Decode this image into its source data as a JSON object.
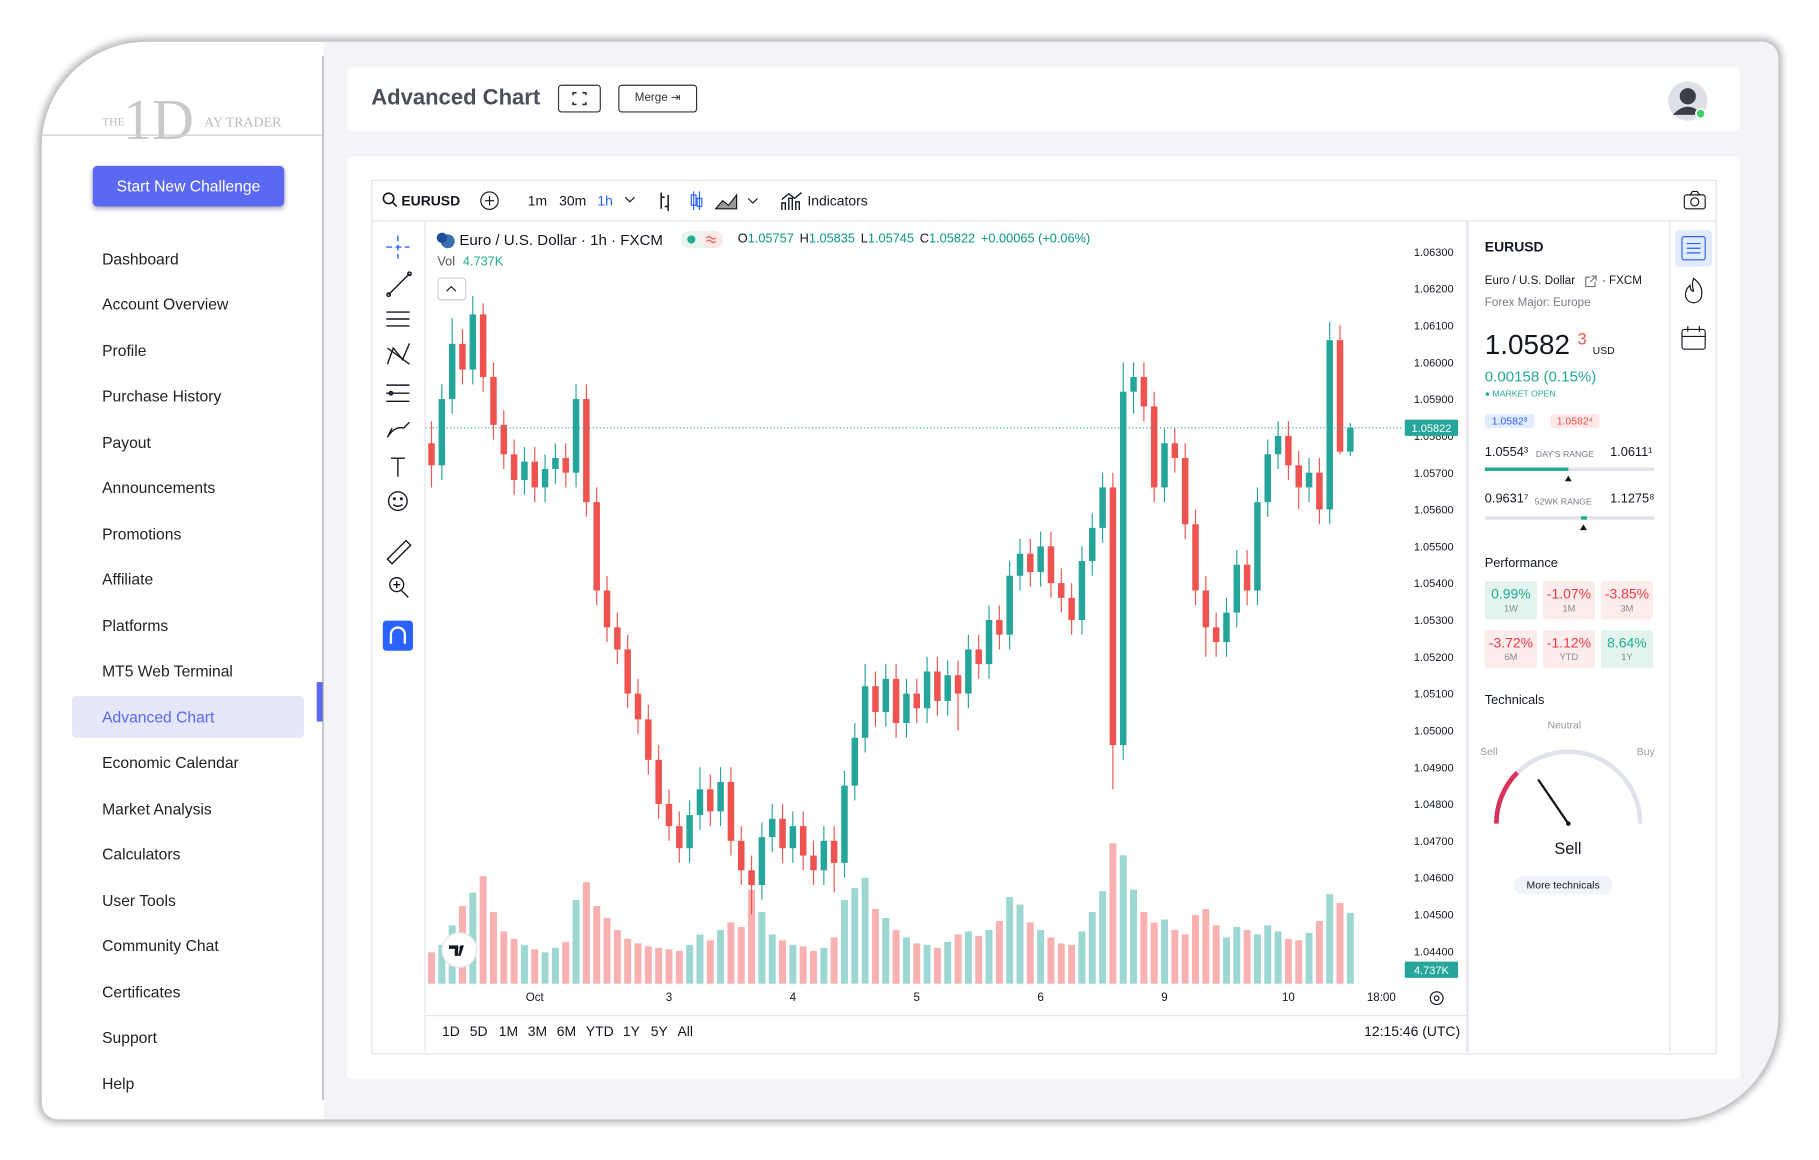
{
  "brand": {
    "pre": "THE",
    "mark": "1D",
    "post": "AY TRADER"
  },
  "sidebar": {
    "button": "Start New Challenge",
    "nav": [
      "Dashboard",
      "Account Overview",
      "Profile",
      "Purchase History",
      "Payout",
      "Announcements",
      "Promotions",
      "Affiliate",
      "Platforms",
      "MT5 Web Terminal",
      "Advanced Chart",
      "Economic Calendar",
      "Market Analysis",
      "Calculators",
      "User Tools",
      "Community Chat",
      "Certificates",
      "Support",
      "Help"
    ],
    "active_index": 10
  },
  "header": {
    "title": "Advanced Chart",
    "merge": "Merge ⇥"
  },
  "toolbar": {
    "symbol": "EURUSD",
    "intervals": [
      "1m",
      "30m",
      "1h"
    ],
    "active_interval": 2,
    "indicators": "Indicators"
  },
  "chart_data": {
    "type": "candlestick",
    "title": "Euro / U.S. Dollar · 1h · FXCM",
    "ohlc_keys": [
      "O",
      "H",
      "L",
      "C"
    ],
    "change_readout": "+0.00065 (+0.06%)",
    "volume_name": "Vol",
    "volume_readout": "4.737K",
    "up_color": "#26a69a",
    "down_color": "#ef5350",
    "categories": [
      null,
      null,
      null,
      null,
      null,
      null,
      null,
      null,
      null,
      null,
      "Oct",
      null,
      null,
      null,
      null,
      null,
      null,
      null,
      null,
      null,
      null,
      null,
      null,
      "3",
      null,
      null,
      null,
      null,
      null,
      null,
      null,
      null,
      null,
      null,
      null,
      "4",
      null,
      null,
      null,
      null,
      null,
      null,
      null,
      null,
      null,
      null,
      null,
      "5",
      null,
      null,
      null,
      null,
      null,
      null,
      null,
      null,
      null,
      null,
      null,
      "6",
      null,
      null,
      null,
      null,
      null,
      null,
      null,
      null,
      null,
      null,
      null,
      "9",
      null,
      null,
      null,
      null,
      null,
      null,
      null,
      null,
      null,
      null,
      null,
      "10",
      null,
      null,
      null,
      null,
      null,
      null,
      null,
      null,
      "18:00"
    ],
    "open": [
      1.0578,
      1.0572,
      1.059,
      1.0605,
      1.0598,
      1.0613,
      1.0596,
      1.0583,
      1.0575,
      1.0568,
      1.0573,
      1.0566,
      1.0571,
      1.0574,
      1.057,
      1.059,
      1.0562,
      1.0538,
      1.0528,
      1.0522,
      1.051,
      1.0503,
      1.0492,
      1.048,
      1.0474,
      1.0468,
      1.0477,
      1.0484,
      1.0478,
      1.0486,
      1.047,
      1.0462,
      1.0458,
      1.0471,
      1.0476,
      1.0468,
      1.0474,
      1.0466,
      1.0462,
      1.047,
      1.0464,
      1.0485,
      1.0498,
      1.0512,
      1.0505,
      1.0514,
      1.0502,
      1.051,
      1.0506,
      1.0516,
      1.0508,
      1.0515,
      1.051,
      1.0522,
      1.0518,
      1.053,
      1.0526,
      1.0542,
      1.0548,
      1.0543,
      1.055,
      1.054,
      1.0536,
      1.053,
      1.0546,
      1.0555,
      1.0566,
      1.0496,
      1.0592,
      1.0596,
      1.0588,
      1.0566,
      1.0578,
      1.0574,
      1.0556,
      1.0538,
      1.0528,
      1.0524,
      1.0532,
      1.0545,
      1.0538,
      1.0562,
      1.0575,
      1.058,
      1.0572,
      1.0566,
      1.057,
      1.056,
      1.0606,
      1.05757,
      null,
      null,
      null
    ],
    "high": [
      1.0584,
      1.0594,
      1.0612,
      1.0609,
      1.0618,
      1.0616,
      1.06,
      1.0587,
      1.0579,
      1.0577,
      1.0577,
      1.0575,
      1.0578,
      1.0578,
      1.0594,
      1.0594,
      1.0566,
      1.0542,
      1.0532,
      1.0526,
      1.0514,
      1.0507,
      1.0496,
      1.0484,
      1.0478,
      1.0481,
      1.049,
      1.0488,
      1.049,
      1.049,
      1.0474,
      1.0466,
      1.0475,
      1.048,
      1.048,
      1.0478,
      1.0478,
      1.047,
      1.0474,
      1.0474,
      1.0489,
      1.0502,
      1.0518,
      1.0516,
      1.0518,
      1.0518,
      1.0514,
      1.0514,
      1.052,
      1.052,
      1.0519,
      1.0519,
      1.0526,
      1.0526,
      1.0534,
      1.0534,
      1.0546,
      1.0552,
      1.0552,
      1.0554,
      1.0554,
      1.0544,
      1.054,
      1.055,
      1.0559,
      1.057,
      1.057,
      1.06,
      1.06,
      1.06,
      1.0592,
      1.0582,
      1.0582,
      1.0578,
      1.056,
      1.0542,
      1.0532,
      1.0536,
      1.0549,
      1.0549,
      1.0566,
      1.0579,
      1.0584,
      1.0584,
      1.0576,
      1.0574,
      1.0574,
      1.0611,
      1.061,
      1.05835,
      null,
      null,
      null
    ],
    "low": [
      1.0566,
      1.0568,
      1.0586,
      1.0594,
      1.0594,
      1.0592,
      1.0579,
      1.0571,
      1.0564,
      1.0564,
      1.0562,
      1.0562,
      1.0567,
      1.0566,
      1.0566,
      1.0558,
      1.0534,
      1.0524,
      1.0518,
      1.0506,
      1.0499,
      1.0488,
      1.0476,
      1.047,
      1.0464,
      1.0464,
      1.0473,
      1.0474,
      1.0474,
      1.0466,
      1.0458,
      1.045,
      1.0454,
      1.0467,
      1.0464,
      1.0464,
      1.0462,
      1.0458,
      1.0458,
      1.0456,
      1.046,
      1.0481,
      1.0494,
      1.0501,
      1.0501,
      1.0498,
      1.0498,
      1.0502,
      1.0502,
      1.0504,
      1.0504,
      1.05,
      1.0506,
      1.0514,
      1.0514,
      1.0522,
      1.0522,
      1.0538,
      1.0539,
      1.0539,
      1.0536,
      1.0532,
      1.0526,
      1.0526,
      1.0542,
      1.0551,
      1.0484,
      1.0492,
      1.0586,
      1.0584,
      1.0562,
      1.0562,
      1.057,
      1.0552,
      1.0534,
      1.052,
      1.052,
      1.052,
      1.0528,
      1.0534,
      1.0534,
      1.0558,
      1.0571,
      1.0568,
      1.056,
      1.0562,
      1.0556,
      1.0556,
      1.0575,
      1.05745,
      null,
      null,
      null
    ],
    "close": [
      1.0572,
      1.059,
      1.0605,
      1.0598,
      1.0613,
      1.0596,
      1.0583,
      1.0575,
      1.0568,
      1.0573,
      1.0566,
      1.0571,
      1.0574,
      1.057,
      1.059,
      1.0562,
      1.0538,
      1.0528,
      1.0522,
      1.051,
      1.0503,
      1.0492,
      1.048,
      1.0474,
      1.0468,
      1.0477,
      1.0484,
      1.0478,
      1.0486,
      1.047,
      1.0462,
      1.0458,
      1.0471,
      1.0476,
      1.0468,
      1.0474,
      1.0466,
      1.0462,
      1.047,
      1.0464,
      1.0485,
      1.0498,
      1.0512,
      1.0505,
      1.0514,
      1.0502,
      1.051,
      1.0506,
      1.0516,
      1.0508,
      1.0515,
      1.051,
      1.0522,
      1.0518,
      1.053,
      1.0526,
      1.0542,
      1.0548,
      1.0543,
      1.055,
      1.054,
      1.0536,
      1.053,
      1.0546,
      1.0555,
      1.0566,
      1.0496,
      1.0592,
      1.0596,
      1.0588,
      1.0566,
      1.0578,
      1.0574,
      1.0556,
      1.0538,
      1.0528,
      1.0524,
      1.0532,
      1.0545,
      1.0538,
      1.0562,
      1.0575,
      1.058,
      1.0572,
      1.0566,
      1.057,
      1.056,
      1.0606,
      1.05757,
      1.05822,
      null,
      null,
      null
    ],
    "volume": [
      2100,
      2600,
      3900,
      5200,
      6100,
      7200,
      4800,
      3500,
      3000,
      2600,
      2300,
      2100,
      2400,
      2800,
      5600,
      6800,
      5200,
      4400,
      3600,
      3000,
      2700,
      2500,
      2400,
      2300,
      2200,
      2600,
      3300,
      2900,
      3600,
      4100,
      3800,
      6300,
      4800,
      3300,
      2900,
      2600,
      2500,
      2200,
      2400,
      3100,
      5600,
      6400,
      7100,
      5000,
      4400,
      3600,
      3100,
      2700,
      2600,
      2400,
      2800,
      3300,
      3500,
      3200,
      3600,
      4200,
      5800,
      5300,
      4100,
      3600,
      3100,
      2700,
      2600,
      3500,
      4800,
      6200,
      9400,
      8600,
      6300,
      4800,
      4100,
      4300,
      3600,
      3300,
      4600,
      5000,
      3900,
      3100,
      3800,
      3600,
      3300,
      3900,
      3500,
      3000,
      2900,
      3400,
      4200,
      6000,
      5400,
      4737,
      null,
      null,
      null
    ],
    "ylim": [
      1.04312,
      1.06379
    ],
    "yticks": [
      {
        "value": 1.063,
        "label": "1.06300"
      },
      {
        "value": 1.062,
        "label": "1.06200"
      },
      {
        "value": 1.061,
        "label": "1.06100"
      },
      {
        "value": 1.06,
        "label": "1.06000"
      },
      {
        "value": 1.059,
        "label": "1.05900"
      },
      {
        "value": 1.058,
        "label": "1.05800"
      },
      {
        "value": 1.057,
        "label": "1.05700"
      },
      {
        "value": 1.056,
        "label": "1.05600"
      },
      {
        "value": 1.055,
        "label": "1.05500"
      },
      {
        "value": 1.054,
        "label": "1.05400"
      },
      {
        "value": 1.053,
        "label": "1.05300"
      },
      {
        "value": 1.052,
        "label": "1.05200"
      },
      {
        "value": 1.051,
        "label": "1.05100"
      },
      {
        "value": 1.05,
        "label": "1.05000"
      },
      {
        "value": 1.049,
        "label": "1.04900"
      },
      {
        "value": 1.048,
        "label": "1.04800"
      },
      {
        "value": 1.047,
        "label": "1.04700"
      },
      {
        "value": 1.046,
        "label": "1.04600"
      },
      {
        "value": 1.045,
        "label": "1.04500"
      },
      {
        "value": 1.044,
        "label": "1.04400"
      }
    ]
  },
  "ranges": [
    "1D",
    "5D",
    "1M",
    "3M",
    "6M",
    "YTD",
    "1Y",
    "5Y",
    "All"
  ],
  "clock": "12:15:46 (UTC)",
  "panel": {
    "symbol": "EURUSD",
    "name": "Euro / U.S. Dollar",
    "source": "· FXCM",
    "category": "Forex Major: Europe",
    "price": "1.0582",
    "price_sup": "3",
    "currency": "USD",
    "change": "0.00158 (0.15%)",
    "status": "● MARKET OPEN",
    "bid": "1.0582³",
    "ask": "1.0582⁴",
    "day_low": "1.0554³",
    "day_label": "DAY'S RANGE",
    "day_high": "1.0611¹",
    "wk_low": "0.9631⁷",
    "wk_label": "52WK RANGE",
    "wk_high": "1.1275⁸",
    "performance_title": "Performance",
    "performance": [
      {
        "value": "0.99%",
        "period": "1W",
        "up": true
      },
      {
        "value": "-1.07%",
        "period": "1M",
        "up": false
      },
      {
        "value": "-3.85%",
        "period": "3M",
        "up": false
      },
      {
        "value": "-3.72%",
        "period": "6M",
        "up": false
      },
      {
        "value": "-1.12%",
        "period": "YTD",
        "up": false
      },
      {
        "value": "8.64%",
        "period": "1Y",
        "up": true
      }
    ],
    "technicals_title": "Technicals",
    "neutral": "Neutral",
    "sell": "Sell",
    "buy": "Buy",
    "verdict": "Sell",
    "more": "More technicals"
  }
}
